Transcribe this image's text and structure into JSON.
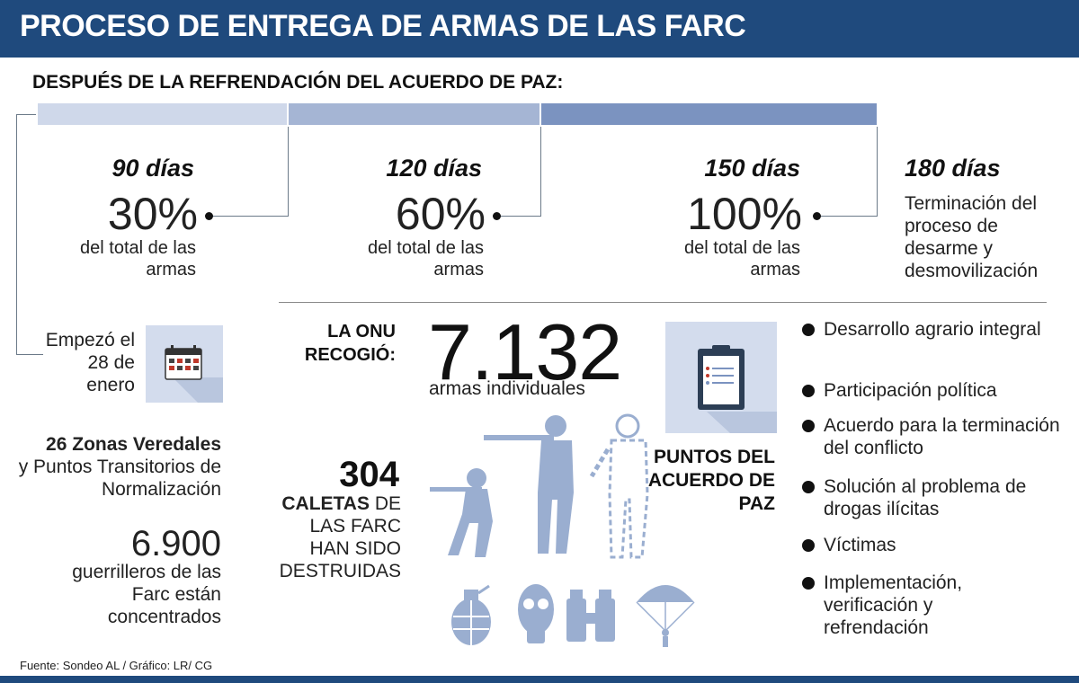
{
  "header": {
    "title": "PROCESO DE ENTREGA DE ARMAS DE LAS FARC"
  },
  "subtitle": "DESPUÉS DE LA REFRENDACIÓN DEL ACUERDO DE PAZ:",
  "timeline": [
    {
      "days": "90 días",
      "percent": "30%",
      "desc": "del total de las armas"
    },
    {
      "days": "120 días",
      "percent": "60%",
      "desc": "del total de las armas"
    },
    {
      "days": "150 días",
      "percent": "100%",
      "desc": "del total de las armas"
    },
    {
      "days": "180 días",
      "desc": "Terminación del proceso de desarme y desmovilización"
    }
  ],
  "start": {
    "text": "Empezó el 28 de enero",
    "icon": "calendar-icon"
  },
  "zones": {
    "bold": "26 Zonas Veredales",
    "rest": "y Puntos Transitorios de Normalización"
  },
  "guerrilleros": {
    "number": "6.900",
    "text": "guerrilleros de las Farc están concentrados"
  },
  "onu": {
    "label": "LA ONU RECOGIÓ:",
    "number": "7.132",
    "text": "armas individuales"
  },
  "caletas": {
    "number": "304",
    "bold": "CALETAS",
    "rest": "DE LAS FARC HAN SIDO DESTRUIDAS"
  },
  "puntos": {
    "title": "PUNTOS DEL ACUERDO DE PAZ",
    "icon": "clipboard-icon",
    "items": [
      "Desarrollo agrario integral",
      "Participación política",
      "Acuerdo para la terminación del conflicto",
      "Solución al problema de drogas ilícitas",
      "Víctimas",
      "Implementación, verificación y refrendación"
    ]
  },
  "icons": [
    "soldier-kneeling-icon",
    "soldier-aiming-icon",
    "soldier-standing-icon",
    "grenade-icon",
    "gas-mask-icon",
    "binoculars-icon",
    "parachute-icon"
  ],
  "colors": {
    "header": "#1f4a7d",
    "bar1": "#cfd8ea",
    "bar2": "#a5b5d4",
    "bar3": "#7b93c0",
    "silhouette": "#9aaed0"
  },
  "source": "Fuente: Sondeo AL / Gráfico: LR/ CG"
}
